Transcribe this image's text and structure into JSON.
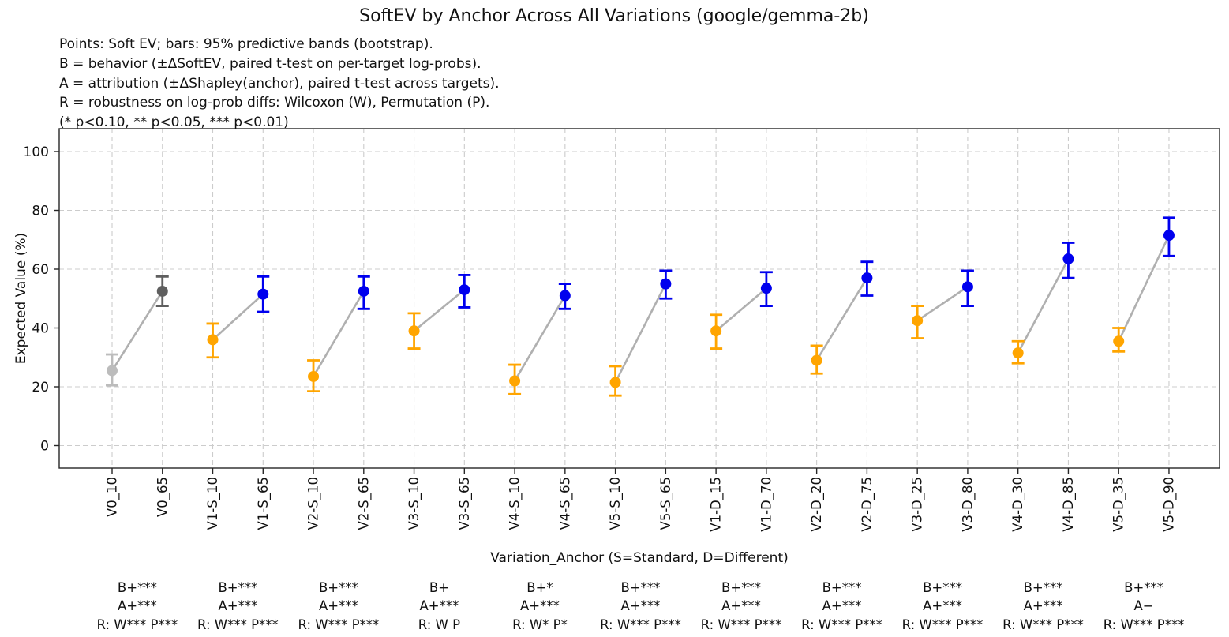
{
  "title": "SoftEV by Anchor Across All Variations (google/gemma-2b)",
  "notes": [
    "Points: Soft EV; bars: 95% predictive bands (bootstrap).",
    "B = behavior (±ΔSoftEV, paired t-test on per-target log-probs).",
    "A = attribution (±ΔShapley(anchor), paired t-test across targets).",
    "R = robustness on log-prob diffs: Wilcoxon (W), Permutation (P).",
    "(* p<0.10, ** p<0.05, *** p<0.01)"
  ],
  "chart_data": {
    "type": "scatter",
    "title": "SoftEV by Anchor Across All Variations (google/gemma-2b)",
    "xlabel": "Variation_Anchor (S=Standard, D=Different)",
    "ylabel": "Expected Value (%)",
    "ylim": [
      -8,
      108
    ],
    "yticks": [
      0,
      20,
      40,
      60,
      80,
      100
    ],
    "grid": true,
    "legend_position": "none",
    "categories": [
      "V0_10",
      "V0_65",
      "V1-S_10",
      "V1-S_65",
      "V2-S_10",
      "V2-S_65",
      "V3-S_10",
      "V3-S_65",
      "V4-S_10",
      "V4-S_65",
      "V5-S_10",
      "V5-S_65",
      "V1-D_15",
      "V1-D_70",
      "V2-D_20",
      "V2-D_75",
      "V3-D_25",
      "V3-D_80",
      "V4-D_30",
      "V4-D_85",
      "V5-D_35",
      "V5-D_90"
    ],
    "points": [
      {
        "label": "V0_10",
        "value": 25.5,
        "lo": 20.5,
        "hi": 31.0,
        "color": "#bcbcbc"
      },
      {
        "label": "V0_65",
        "value": 52.5,
        "lo": 47.5,
        "hi": 57.5,
        "color": "#5f5f5f"
      },
      {
        "label": "V1-S_10",
        "value": 36.0,
        "lo": 30.0,
        "hi": 41.5,
        "color": "#ffa500"
      },
      {
        "label": "V1-S_65",
        "value": 51.5,
        "lo": 45.5,
        "hi": 57.5,
        "color": "#0000ee"
      },
      {
        "label": "V2-S_10",
        "value": 23.5,
        "lo": 18.5,
        "hi": 29.0,
        "color": "#ffa500"
      },
      {
        "label": "V2-S_65",
        "value": 52.5,
        "lo": 46.5,
        "hi": 57.5,
        "color": "#0000ee"
      },
      {
        "label": "V3-S_10",
        "value": 39.0,
        "lo": 33.0,
        "hi": 45.0,
        "color": "#ffa500"
      },
      {
        "label": "V3-S_65",
        "value": 53.0,
        "lo": 47.0,
        "hi": 58.0,
        "color": "#0000ee"
      },
      {
        "label": "V4-S_10",
        "value": 22.0,
        "lo": 17.5,
        "hi": 27.5,
        "color": "#ffa500"
      },
      {
        "label": "V4-S_65",
        "value": 51.0,
        "lo": 46.5,
        "hi": 55.0,
        "color": "#0000ee"
      },
      {
        "label": "V5-S_10",
        "value": 21.5,
        "lo": 17.0,
        "hi": 27.0,
        "color": "#ffa500"
      },
      {
        "label": "V5-S_65",
        "value": 55.0,
        "lo": 50.0,
        "hi": 59.5,
        "color": "#0000ee"
      },
      {
        "label": "V1-D_15",
        "value": 39.0,
        "lo": 33.0,
        "hi": 44.5,
        "color": "#ffa500"
      },
      {
        "label": "V1-D_70",
        "value": 53.5,
        "lo": 47.5,
        "hi": 59.0,
        "color": "#0000ee"
      },
      {
        "label": "V2-D_20",
        "value": 29.0,
        "lo": 24.5,
        "hi": 34.0,
        "color": "#ffa500"
      },
      {
        "label": "V2-D_75",
        "value": 57.0,
        "lo": 51.0,
        "hi": 62.5,
        "color": "#0000ee"
      },
      {
        "label": "V3-D_25",
        "value": 42.5,
        "lo": 36.5,
        "hi": 47.5,
        "color": "#ffa500"
      },
      {
        "label": "V3-D_80",
        "value": 54.0,
        "lo": 47.5,
        "hi": 59.5,
        "color": "#0000ee"
      },
      {
        "label": "V4-D_30",
        "value": 31.5,
        "lo": 28.0,
        "hi": 35.5,
        "color": "#ffa500"
      },
      {
        "label": "V4-D_85",
        "value": 63.5,
        "lo": 57.0,
        "hi": 69.0,
        "color": "#0000ee"
      },
      {
        "label": "V5-D_35",
        "value": 35.5,
        "lo": 32.0,
        "hi": 40.0,
        "color": "#ffa500"
      },
      {
        "label": "V5-D_90",
        "value": 71.5,
        "lo": 64.5,
        "hi": 77.5,
        "color": "#0000ee"
      }
    ],
    "pair_annotations": [
      {
        "b": "B+***",
        "a": "A+***",
        "r": "R: W*** P***"
      },
      {
        "b": "B+***",
        "a": "A+***",
        "r": "R: W*** P***"
      },
      {
        "b": "B+***",
        "a": "A+***",
        "r": "R: W*** P***"
      },
      {
        "b": "B+",
        "a": "A+***",
        "r": "R: W P"
      },
      {
        "b": "B+*",
        "a": "A+***",
        "r": "R: W* P*"
      },
      {
        "b": "B+***",
        "a": "A+***",
        "r": "R: W*** P***"
      },
      {
        "b": "B+***",
        "a": "A+***",
        "r": "R: W*** P***"
      },
      {
        "b": "B+***",
        "a": "A+***",
        "r": "R: W*** P***"
      },
      {
        "b": "B+***",
        "a": "A+***",
        "r": "R: W*** P***"
      },
      {
        "b": "B+***",
        "a": "A+***",
        "r": "R: W*** P***"
      },
      {
        "b": "B+***",
        "a": "A−",
        "r": "R: W*** P***"
      }
    ],
    "colors": {
      "anchor_low": "#ffa500",
      "anchor_high": "#0000ee",
      "baseline_low": "#bcbcbc",
      "baseline_high": "#5f5f5f",
      "connector": "#b0b0b0",
      "grid": "#cccccc",
      "axis": "#262626"
    }
  }
}
